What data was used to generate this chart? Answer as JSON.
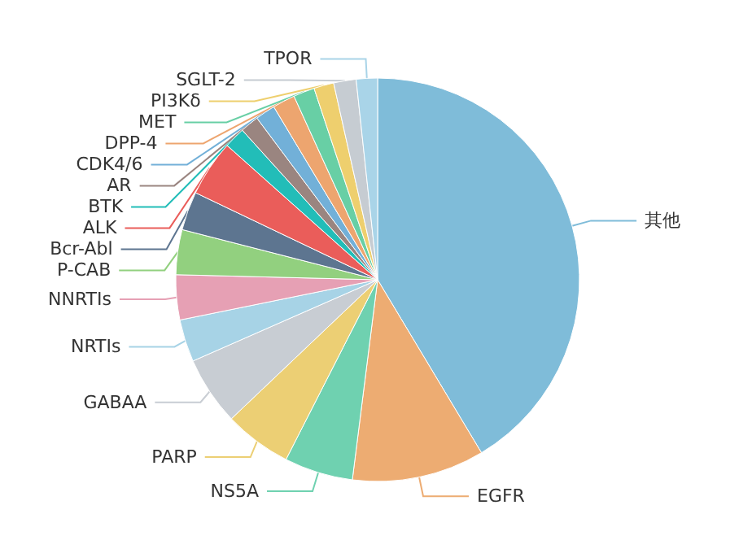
{
  "chart_data": {
    "type": "pie",
    "categories": [
      "其他",
      "EGFR",
      "NS5A",
      "PARP",
      "GABAA",
      "NRTIs",
      "NNRTIs",
      "P-CAB",
      "Bcr-Abl",
      "ALK",
      "BTK",
      "AR",
      "CDK4/6",
      "DPP-4",
      "MET",
      "PI3Kδ",
      "SGLT-2",
      "TPOR"
    ],
    "values": [
      41.4,
      10.6,
      5.5,
      5.4,
      5.5,
      3.4,
      3.6,
      3.6,
      3.1,
      4.5,
      1.7,
      1.5,
      1.6,
      1.8,
      1.7,
      1.6,
      1.8,
      1.7
    ],
    "colors": [
      "#7fbcd9",
      "#edac72",
      "#6fd1b0",
      "#eccf74",
      "#c8cdd3",
      "#a7d3e6",
      "#e6a0b4",
      "#92d07f",
      "#5d7590",
      "#ea5d5a",
      "#22bdb8",
      "#9a8580",
      "#72b0d8",
      "#eda56f",
      "#68cfa5",
      "#eecf6e",
      "#c6ccd2",
      "#a9d4e8"
    ]
  }
}
